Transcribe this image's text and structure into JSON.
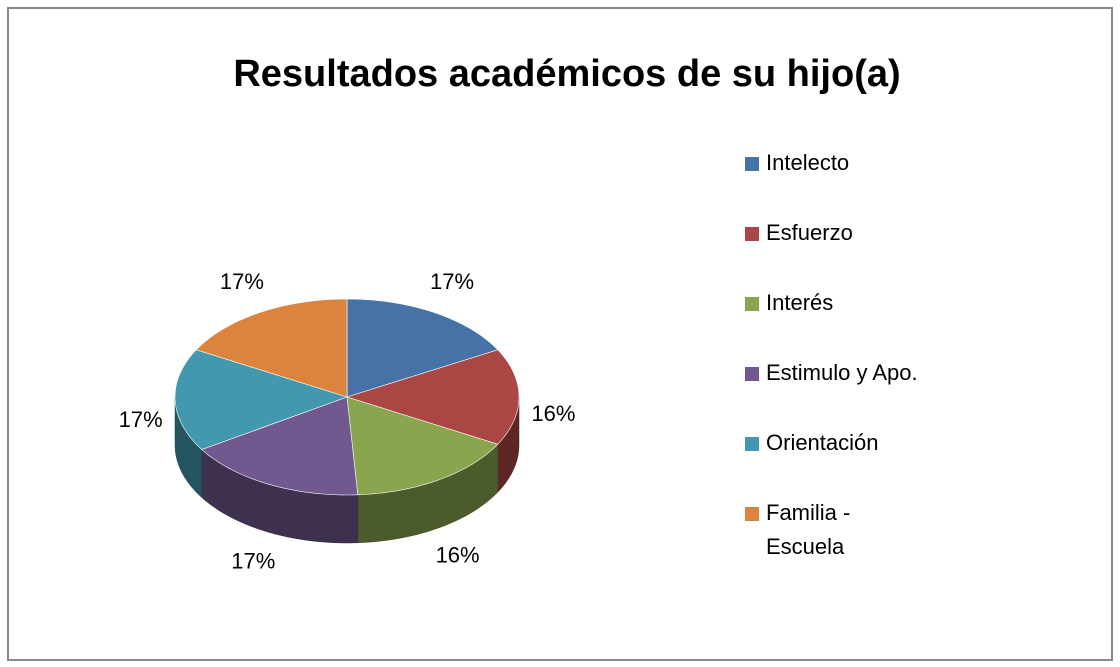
{
  "chart_data": {
    "type": "pie",
    "title": "Resultados académicos de su hijo(a)",
    "categories": [
      "Intelecto",
      "Esfuerzo",
      "Interés",
      "Estimulo y Apo.",
      "Orientación",
      "Familia - Escuela"
    ],
    "values": [
      17,
      16,
      16,
      17,
      17,
      17
    ],
    "value_labels": [
      "17%",
      "16%",
      "16%",
      "17%",
      "17%",
      "17%"
    ],
    "colors": [
      "#4572a7",
      "#aa4643",
      "#89a54e",
      "#71588f",
      "#4198af",
      "#db843d"
    ],
    "legend": "right"
  }
}
